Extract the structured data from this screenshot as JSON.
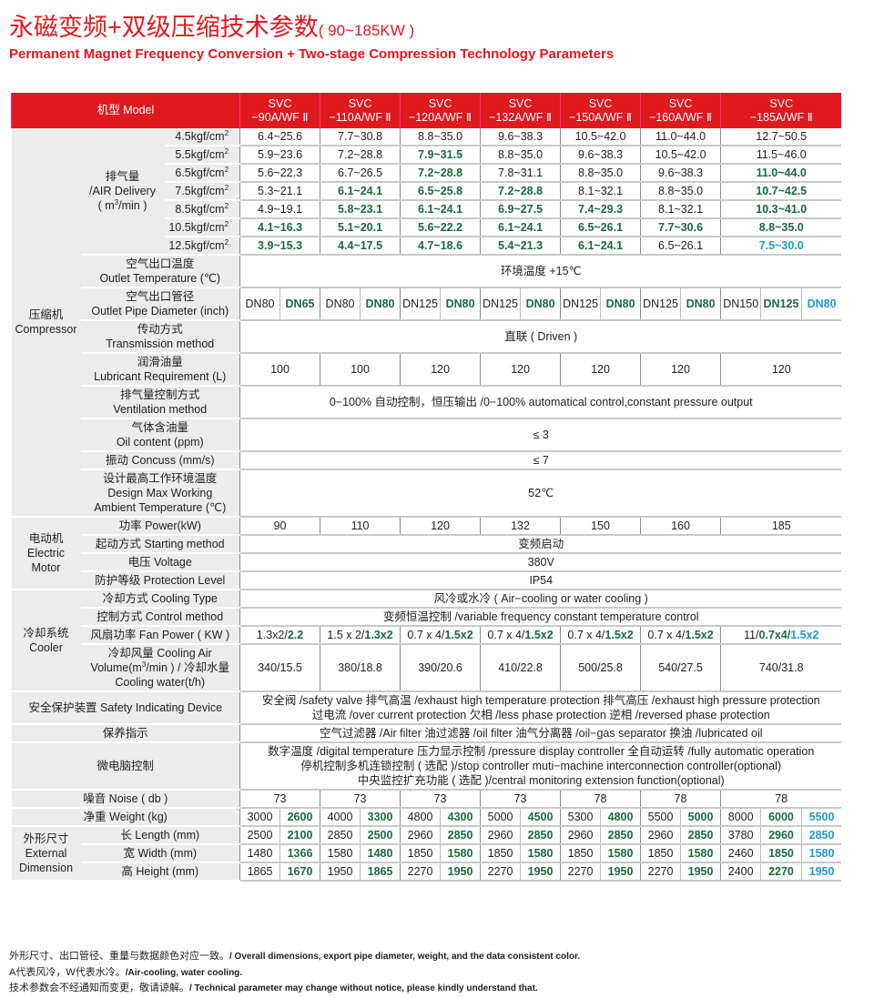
{
  "title": {
    "main": "永磁变频+双级压缩技术参数",
    "range": "( 90~185KW )",
    "subtitle": "Permanent Magnet Frequency Conversion + Two-stage Compression Technology Parameters"
  },
  "colors": {
    "brand_red": "#e0191f",
    "green": "#1a6b3a",
    "blue": "#1e9ad6"
  },
  "header": {
    "model_label": "机型 Model",
    "models": [
      {
        "line1": "SVC",
        "line2": "−90A/WF Ⅱ"
      },
      {
        "line1": "SVC",
        "line2": "−110A/WF Ⅱ"
      },
      {
        "line1": "SVC",
        "line2": "−120A/WF Ⅱ"
      },
      {
        "line1": "SVC",
        "line2": "−132A/WF Ⅱ"
      },
      {
        "line1": "SVC",
        "line2": "−150A/WF Ⅱ"
      },
      {
        "line1": "SVC",
        "line2": "−160A/WF Ⅱ"
      },
      {
        "line1": "SVC",
        "line2": "−185A/WF Ⅱ"
      }
    ]
  },
  "sections": [
    {
      "group": [
        "压缩机",
        "Compressor"
      ],
      "rows": [
        {
          "subgroup": [
            "排气量",
            "/AIR Delivery",
            "( m³/min )"
          ],
          "items": [
            {
              "label": "4.5kgf/cm²",
              "values": [
                "6.4~25.6",
                "7.7~30.8",
                "8.8~35.0",
                "9.6~38.3",
                "10.5~42.0",
                "11.0~44.0",
                "12.7~50.5"
              ]
            },
            {
              "label": "5.5kgf/cm²",
              "values": [
                "5.9~23.6",
                "7.2~28.8",
                {
                  "v": "7.9~31.5",
                  "color": "green"
                },
                "8.8~35.0",
                "9.6~38.3",
                "10.5~42.0",
                "11.5~46.0"
              ]
            },
            {
              "label": "6.5kgf/cm²",
              "values": [
                "5.6~22.3",
                "6.7~26.5",
                {
                  "v": "7.2~28.8",
                  "color": "green"
                },
                "7.8~31.1",
                "8.8~35.0",
                "9.6~38.3",
                {
                  "v": "11.0~44.0",
                  "color": "green"
                }
              ]
            },
            {
              "label": "7.5kgf/cm²",
              "values": [
                "5.3~21.1",
                {
                  "v": "6.1~24.1",
                  "color": "green"
                },
                {
                  "v": "6.5~25.8",
                  "color": "green"
                },
                {
                  "v": "7.2~28.8",
                  "color": "green"
                },
                "8.1~32.1",
                "8.8~35.0",
                {
                  "v": "10.7~42.5",
                  "color": "green"
                }
              ]
            },
            {
              "label": "8.5kgf/cm²",
              "values": [
                "4.9~19.1",
                {
                  "v": "5.8~23.1",
                  "color": "green"
                },
                {
                  "v": "6.1~24.1",
                  "color": "green"
                },
                {
                  "v": "6.9~27.5",
                  "color": "green"
                },
                {
                  "v": "7.4~29.3",
                  "color": "green"
                },
                "8.1~32.1",
                {
                  "v": "10.3~41.0",
                  "color": "green"
                }
              ]
            },
            {
              "label": "10.5kgf/cm²",
              "values": [
                {
                  "v": "4.1~16.3",
                  "color": "green"
                },
                {
                  "v": "5.1~20.1",
                  "color": "green"
                },
                {
                  "v": "5.6~22.2",
                  "color": "green"
                },
                {
                  "v": "6.1~24.1",
                  "color": "green"
                },
                {
                  "v": "6.5~26.1",
                  "color": "green"
                },
                {
                  "v": "7.7~30.6",
                  "color": "green"
                },
                {
                  "v": "8.8~35.0",
                  "color": "green"
                }
              ]
            },
            {
              "label": "12.5kgf/cm²",
              "values": [
                {
                  "v": "3.9~15.3",
                  "color": "green"
                },
                {
                  "v": "4.4~17.5",
                  "color": "green"
                },
                {
                  "v": "4.7~18.6",
                  "color": "green"
                },
                {
                  "v": "5.4~21.3",
                  "color": "green"
                },
                {
                  "v": "6.1~24.1",
                  "color": "green"
                },
                "6.5~26.1",
                {
                  "v": "7.5~30.0",
                  "color": "blue"
                }
              ]
            }
          ]
        },
        {
          "label": [
            "空气出口温度",
            "Outlet Temperature (℃)"
          ],
          "merged": [
            "环境温度 +15℃"
          ]
        },
        {
          "label": [
            "空气出口管径",
            "Outlet Pipe Diameter (inch)"
          ],
          "values": [
            [
              "DN80",
              {
                "v": "DN65",
                "color": "green"
              }
            ],
            [
              "DN80",
              {
                "v": "DN80",
                "color": "green"
              }
            ],
            [
              "DN125",
              {
                "v": "DN80",
                "color": "green"
              }
            ],
            [
              "DN125",
              {
                "v": "DN80",
                "color": "green"
              }
            ],
            [
              "DN125",
              {
                "v": "DN80",
                "color": "green"
              }
            ],
            [
              "DN125",
              {
                "v": "DN80",
                "color": "green"
              }
            ],
            [
              "DN150",
              {
                "v": "DN125",
                "color": "green"
              },
              {
                "v": "DN80",
                "color": "blue"
              }
            ]
          ]
        },
        {
          "label": [
            "传动方式",
            "Transmission method"
          ],
          "merged": [
            "直联 ( Driven )"
          ]
        },
        {
          "label": [
            "润滑油量",
            "Lubricant Requirement (L)"
          ],
          "values": [
            "100",
            "100",
            "120",
            "120",
            "120",
            "120",
            "120"
          ]
        },
        {
          "label": [
            "排气量控制方式",
            "Ventilation method"
          ],
          "merged": [
            "0−100% 自动控制，恒压输出 /0−100%  automatical control,constant pressure output"
          ]
        },
        {
          "label": [
            "气体含油量",
            "Oil content (ppm)"
          ],
          "merged": [
            "≤ 3"
          ]
        },
        {
          "label": [
            "振动 Concuss (mm/s)"
          ],
          "merged": [
            "≤ 7"
          ]
        },
        {
          "label": [
            "设计最高工作环境温度",
            "Design Max Working",
            "Ambient  Temperature (℃)"
          ],
          "merged": [
            "52℃"
          ]
        }
      ]
    },
    {
      "group": [
        "电动机",
        "Electric",
        "Motor"
      ],
      "rows": [
        {
          "label": [
            "功率 Power(kW)"
          ],
          "values": [
            "90",
            "110",
            "120",
            "132",
            "150",
            "160",
            "185"
          ]
        },
        {
          "label": [
            "起动方式 Starting method"
          ],
          "merged": [
            "变频启动"
          ]
        },
        {
          "label": [
            "电压 Voltage"
          ],
          "merged": [
            "380V"
          ]
        },
        {
          "label": [
            "防护等级 Protection Level"
          ],
          "merged": [
            "IP54"
          ]
        }
      ]
    },
    {
      "group": [
        "冷却系统",
        "Cooler"
      ],
      "rows": [
        {
          "label": [
            "冷却方式 Cooling Type"
          ],
          "merged": [
            "风冷或水冷 ( Air−cooling or water cooling )"
          ]
        },
        {
          "label": [
            "控制方式 Control method"
          ],
          "merged": [
            "变频恒温控制 /variable frequency constant temperature control"
          ]
        },
        {
          "label": [
            "风扇功率 Fan Power ( KW )"
          ],
          "values": [
            {
              "parts": [
                {
                  "v": "1.3x2/"
                },
                {
                  "v": "2.2",
                  "color": "green"
                }
              ]
            },
            {
              "parts": [
                {
                  "v": "1.5 x 2/"
                },
                {
                  "v": "1.3x2",
                  "color": "green"
                }
              ]
            },
            {
              "parts": [
                {
                  "v": "0.7 x 4/"
                },
                {
                  "v": "1.5x2",
                  "color": "green"
                }
              ]
            },
            {
              "parts": [
                {
                  "v": "0.7 x 4/"
                },
                {
                  "v": "1.5x2",
                  "color": "green"
                }
              ]
            },
            {
              "parts": [
                {
                  "v": "0.7 x 4/"
                },
                {
                  "v": "1.5x2",
                  "color": "green"
                }
              ]
            },
            {
              "parts": [
                {
                  "v": "0.7 x 4/"
                },
                {
                  "v": "1.5x2",
                  "color": "green"
                }
              ]
            },
            {
              "parts": [
                {
                  "v": "11/"
                },
                {
                  "v": "0.7x4/",
                  "color": "green"
                },
                {
                  "v": "1.5x2",
                  "color": "blue"
                }
              ]
            }
          ]
        },
        {
          "label": [
            "冷却风量 Cooling Air",
            "Volume(m³/min ) / 冷却水量",
            "Cooling water(t/h)"
          ],
          "values": [
            "340/15.5",
            "380/18.8",
            "390/20.6",
            "410/22.8",
            "500/25.8",
            "540/27.5",
            "740/31.8"
          ]
        }
      ]
    },
    {
      "group": null,
      "rows": [
        {
          "label": [
            "安全保护装置 Safety Indicating Device"
          ],
          "merged": [
            "安全阀 /safety valve  排气高温 /exhaust high temperature protection  排气高压 /exhaust high pressure protection",
            "过电流 /over current protection  欠相 /less phase protection  逆相 /reversed phase  protection"
          ]
        },
        {
          "label": [
            "保养指示"
          ],
          "merged": [
            "空气过滤器 /Air filter  油过滤器 /oil filter  油气分离器 /oil−gas separator  换油 /lubricated oil"
          ]
        },
        {
          "label": [
            "微电脑控制"
          ],
          "merged": [
            "数字温度 /digital temperature  压力显示控制 /pressure display controller  全自动运转 /fully automatic operation",
            "停机控制多机连锁控制 ( 选配 )/stop controller muti−machine interconnection controller(optional)",
            "中央监控扩充功能 ( 选配 )/central monitoring extension function(optional)"
          ]
        },
        {
          "label": [
            "噪音 Noise ( db )"
          ],
          "values": [
            "73",
            "73",
            "73",
            "73",
            "78",
            "78",
            "78"
          ]
        },
        {
          "label": [
            "净重 Weight (kg)"
          ],
          "values": [
            [
              "3000",
              {
                "v": "2600",
                "color": "green"
              }
            ],
            [
              "4000",
              {
                "v": "3300",
                "color": "green"
              }
            ],
            [
              "4800",
              {
                "v": "4300",
                "color": "green"
              }
            ],
            [
              "5000",
              {
                "v": "4500",
                "color": "green"
              }
            ],
            [
              "5300",
              {
                "v": "4800",
                "color": "green"
              }
            ],
            [
              "5500",
              {
                "v": "5000",
                "color": "green"
              }
            ],
            [
              "8000",
              {
                "v": "6000",
                "color": "green"
              },
              {
                "v": "5500",
                "color": "blue"
              }
            ]
          ]
        }
      ]
    },
    {
      "group": [
        "外形尺寸",
        "External",
        "Dimension"
      ],
      "rows": [
        {
          "label": [
            "长 Length  (mm)"
          ],
          "values": [
            [
              "2500",
              {
                "v": "2100",
                "color": "green"
              }
            ],
            [
              "2850",
              {
                "v": "2500",
                "color": "green"
              }
            ],
            [
              "2960",
              {
                "v": "2850",
                "color": "green"
              }
            ],
            [
              "2960",
              {
                "v": "2850",
                "color": "green"
              }
            ],
            [
              "2960",
              {
                "v": "2850",
                "color": "green"
              }
            ],
            [
              "2960",
              {
                "v": "2850",
                "color": "green"
              }
            ],
            [
              "3780",
              {
                "v": "2960",
                "color": "green"
              },
              {
                "v": "2850",
                "color": "blue"
              }
            ]
          ]
        },
        {
          "label": [
            "宽 Width   (mm)"
          ],
          "values": [
            [
              "1480",
              {
                "v": "1366",
                "color": "green"
              }
            ],
            [
              "1580",
              {
                "v": "1480",
                "color": "green"
              }
            ],
            [
              "1850",
              {
                "v": "1580",
                "color": "green"
              }
            ],
            [
              "1850",
              {
                "v": "1580",
                "color": "green"
              }
            ],
            [
              "1850",
              {
                "v": "1580",
                "color": "green"
              }
            ],
            [
              "1850",
              {
                "v": "1580",
                "color": "green"
              }
            ],
            [
              "2460",
              {
                "v": "1850",
                "color": "green"
              },
              {
                "v": "1580",
                "color": "blue"
              }
            ]
          ]
        },
        {
          "label": [
            "高 Height  (mm)"
          ],
          "values": [
            [
              "1865",
              {
                "v": "1670",
                "color": "green"
              }
            ],
            [
              "1950",
              {
                "v": "1865",
                "color": "green"
              }
            ],
            [
              "2270",
              {
                "v": "1950",
                "color": "green"
              }
            ],
            [
              "2270",
              {
                "v": "1950",
                "color": "green"
              }
            ],
            [
              "2270",
              {
                "v": "1950",
                "color": "green"
              }
            ],
            [
              "2270",
              {
                "v": "1950",
                "color": "green"
              }
            ],
            [
              "2400",
              {
                "v": "2270",
                "color": "green"
              },
              {
                "v": "1950",
                "color": "blue"
              }
            ]
          ]
        }
      ]
    }
  ],
  "notes": [
    {
      "cn": "外形尺寸、出口管径、重量与数据颜色对应一致。",
      "en": "/ Overall dimensions, export pipe diameter, weight, and the data consistent color."
    },
    {
      "cn": "A代表风冷，W代表水冷。",
      "en": "/Air-cooling, water cooling."
    },
    {
      "cn": "技术参数会不经通知而变更，敬请谅解。",
      "en": "/ Technical parameter may change without notice, please kindly understand that."
    }
  ]
}
